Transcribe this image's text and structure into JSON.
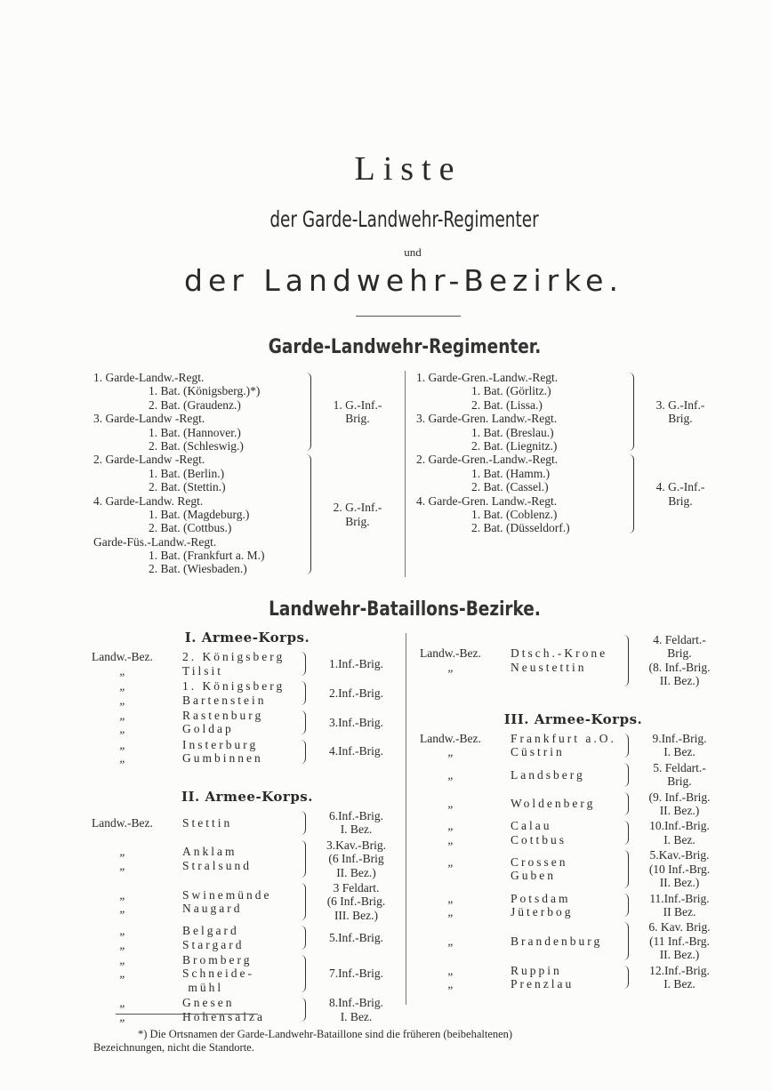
{
  "title": {
    "line1": "Liste",
    "line2": "der Garde-Landwehr-Regimenter",
    "line3": "und",
    "line4": "der Landwehr-Bezirke."
  },
  "garde": {
    "heading": "Garde-Landwehr-Regimenter.",
    "left": [
      {
        "rows": [
          {
            "text": "1. Garde-Landw.-Regt.",
            "indent": false
          },
          {
            "text": "1. Bat. (Königsberg.)*)",
            "indent": true
          },
          {
            "text": "2. Bat. (Graudenz.)",
            "indent": true
          },
          {
            "text": "3. Garde-Landw -Regt.",
            "indent": false
          },
          {
            "text": "1. Bat. (Hannover.)",
            "indent": true
          },
          {
            "text": "2. Bat. (Schleswig.)",
            "indent": true
          }
        ],
        "brigade": [
          "1. G.-Inf.-",
          "Brig."
        ]
      },
      {
        "rows": [
          {
            "text": "2. Garde-Landw -Regt.",
            "indent": false
          },
          {
            "text": "1. Bat. (Berlin.)",
            "indent": true
          },
          {
            "text": "2. Bat. (Stettin.)",
            "indent": true
          },
          {
            "text": "4. Garde-Landw. Regt.",
            "indent": false
          },
          {
            "text": "1. Bat. (Magdeburg.)",
            "indent": true
          },
          {
            "text": "2. Bat. (Cottbus.)",
            "indent": true
          },
          {
            "text": "Garde-Füs.-Landw.-Regt.",
            "indent": false
          },
          {
            "text": "1. Bat. (Frankfurt a. M.)",
            "indent": true
          },
          {
            "text": "2. Bat. (Wiesbaden.)",
            "indent": true
          }
        ],
        "brigade": [
          "2. G.-Inf.-",
          "Brig."
        ]
      }
    ],
    "right": [
      {
        "rows": [
          {
            "text": "1. Garde-Gren.-Landw.-Regt.",
            "indent": false
          },
          {
            "text": "1. Bat. (Görlitz.)",
            "indent": true
          },
          {
            "text": "2. Bat. (Lissa.)",
            "indent": true
          },
          {
            "text": "3. Garde-Gren. Landw.-Regt.",
            "indent": false
          },
          {
            "text": "1. Bat. (Breslau.)",
            "indent": true
          },
          {
            "text": "2. Bat. (Liegnitz.)",
            "indent": true
          }
        ],
        "brigade": [
          "3. G.-Inf.-",
          "Brig."
        ]
      },
      {
        "rows": [
          {
            "text": "2. Garde-Gren.-Landw.-Regt.",
            "indent": false
          },
          {
            "text": "1. Bat. (Hamm.)",
            "indent": true
          },
          {
            "text": "2. Bat. (Cassel.)",
            "indent": true
          },
          {
            "text": "4. Garde-Gren. Landw.-Regt.",
            "indent": false
          },
          {
            "text": "1. Bat. (Coblenz.)",
            "indent": true
          },
          {
            "text": "2. Bat. (Düsseldorf.)",
            "indent": true
          }
        ],
        "brigade": [
          "4. G.-Inf.-",
          "Brig."
        ]
      }
    ]
  },
  "bezirke": {
    "heading": "Landwehr-Bataillons-Bezirke.",
    "left": [
      {
        "heading": "I. Armee-Korps.",
        "groups": [
          {
            "rows": [
              {
                "prefix": "Landw.-Bez.",
                "name": "2. Königsberg"
              },
              {
                "prefix": "„",
                "name": "Tilsit"
              }
            ],
            "brigade": [
              "1.Inf.-Brig."
            ]
          },
          {
            "rows": [
              {
                "prefix": "„",
                "name": "1. Königsberg"
              },
              {
                "prefix": "„",
                "name": "Bartenstein"
              }
            ],
            "brigade": [
              "2.Inf.-Brig."
            ]
          },
          {
            "rows": [
              {
                "prefix": "„",
                "name": "Rastenburg"
              },
              {
                "prefix": "„",
                "name": "Goldap"
              }
            ],
            "brigade": [
              "3.Inf.-Brig."
            ]
          },
          {
            "rows": [
              {
                "prefix": "„",
                "name": "Insterburg"
              },
              {
                "prefix": "„",
                "name": "Gumbinnen"
              }
            ],
            "brigade": [
              "4.Inf.-Brig."
            ]
          }
        ]
      },
      {
        "heading": "II. Armee-Korps.",
        "groups": [
          {
            "rows": [
              {
                "prefix": "Landw.-Bez.",
                "name": "Stettin"
              }
            ],
            "brigade": [
              "6.Inf.-Brig.",
              "I. Bez."
            ]
          },
          {
            "rows": [
              {
                "prefix": "„",
                "name": "Anklam"
              },
              {
                "prefix": "„",
                "name": "Stralsund"
              }
            ],
            "brigade": [
              "3.Kav.-Brig.",
              "(6 Inf.-Brig",
              "II. Bez.)"
            ]
          },
          {
            "rows": [
              {
                "prefix": "„",
                "name": "Swinemünde"
              },
              {
                "prefix": "„",
                "name": "Naugard"
              }
            ],
            "brigade": [
              "3 Feldart.",
              "(6 Inf.-Brig.",
              "III. Bez.)"
            ]
          },
          {
            "rows": [
              {
                "prefix": "„",
                "name": "Belgard"
              },
              {
                "prefix": "„",
                "name": "Stargard"
              }
            ],
            "brigade": [
              "5.Inf.-Brig."
            ]
          },
          {
            "rows": [
              {
                "prefix": "„",
                "name": "Bromberg"
              },
              {
                "prefix": "„",
                "name": "Schneide-"
              },
              {
                "prefix": "",
                "name": " mühl"
              }
            ],
            "brigade": [
              "7.Inf.-Brig."
            ]
          },
          {
            "rows": [
              {
                "prefix": "„",
                "name": "Gnesen"
              },
              {
                "prefix": "„",
                "name": "Hohensalza"
              }
            ],
            "brigade": [
              "8.Inf.-Brig.",
              "I. Bez."
            ]
          }
        ]
      }
    ],
    "right": [
      {
        "heading": "",
        "groups": [
          {
            "rows": [
              {
                "prefix": "Landw.-Bez.",
                "name": "Dtsch.-Krone"
              },
              {
                "prefix": "„",
                "name": "Neustettin"
              }
            ],
            "brigade": [
              "4. Feldart.-",
              "Brig.",
              "(8. Inf.-Brig.",
              "II. Bez.)"
            ]
          }
        ]
      },
      {
        "heading": "III. Armee-Korps.",
        "groups": [
          {
            "rows": [
              {
                "prefix": "Landw.-Bez.",
                "name": "Frankfurt a.O."
              },
              {
                "prefix": "„",
                "name": "Cüstrin"
              }
            ],
            "brigade": [
              "9.Inf.-Brig.",
              "I. Bez."
            ]
          },
          {
            "rows": [
              {
                "prefix": "„",
                "name": "Landsberg"
              }
            ],
            "brigade": [
              "5. Feldart.-",
              "Brig."
            ]
          },
          {
            "rows": [
              {
                "prefix": "„",
                "name": "Woldenberg"
              }
            ],
            "brigade": [
              "(9. Inf.-Brig.",
              "II. Bez.)"
            ]
          },
          {
            "rows": [
              {
                "prefix": "„",
                "name": "Calau"
              },
              {
                "prefix": "„",
                "name": "Cottbus"
              }
            ],
            "brigade": [
              "10.Inf.-Brig.",
              "I. Bez."
            ]
          },
          {
            "rows": [
              {
                "prefix": "„",
                "name": "Crossen"
              },
              {
                "prefix": "",
                "name": "Guben"
              }
            ],
            "brigade": [
              "5.Kav.-Brig.",
              "(10 Inf.-Brg.",
              "II. Bez.)"
            ]
          },
          {
            "rows": [
              {
                "prefix": "„",
                "name": "Potsdam"
              },
              {
                "prefix": "„",
                "name": "Jüterbog"
              }
            ],
            "brigade": [
              "11.Inf.-Brig.",
              "II Bez."
            ]
          },
          {
            "rows": [
              {
                "prefix": "„",
                "name": "Brandenburg"
              }
            ],
            "brigade": [
              "6. Kav. Brig.",
              "(11 Inf.-Brg.",
              "II. Bez.)"
            ]
          },
          {
            "rows": [
              {
                "prefix": "„",
                "name": "Ruppin"
              },
              {
                "prefix": "„",
                "name": "Prenzlau"
              }
            ],
            "brigade": [
              "12.Inf.-Brig.",
              "I. Bez."
            ]
          }
        ]
      }
    ]
  },
  "footnote": {
    "line1": "*) Die Ortsnamen der Garde-Landwehr-Bataillone sind die früheren (beibehaltenen)",
    "line2": "Bezeichnungen, nicht die Standorte."
  }
}
